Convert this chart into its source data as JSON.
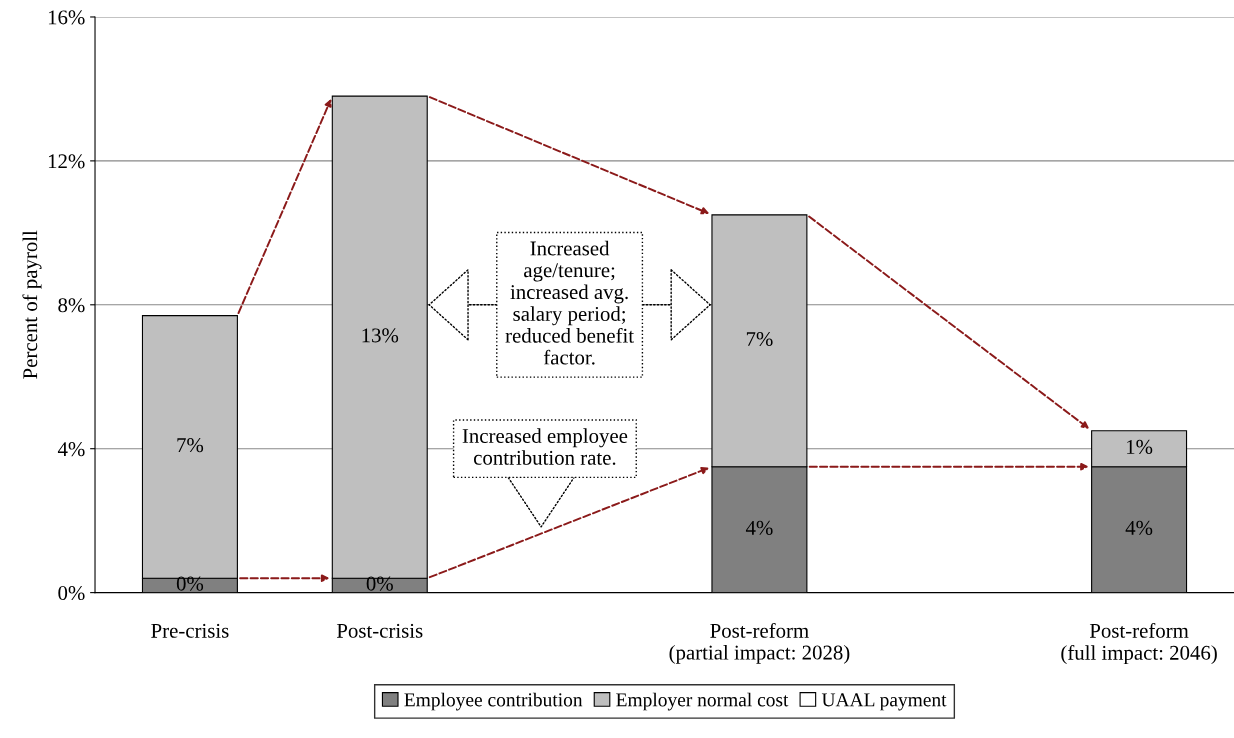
{
  "chart_data": {
    "type": "bar",
    "stacked": true,
    "ylabel": "Percent of payroll",
    "categories": [
      "Pre-crisis",
      "Post-crisis",
      null,
      "Post-reform\n(partial impact: 2028)",
      null,
      "Post-reform\n(full impact: 2046)"
    ],
    "series": [
      {
        "name": "Employee contribution",
        "color": "#808080",
        "values": [
          0.4,
          0.4,
          null,
          3.5,
          null,
          3.5
        ],
        "value_labels": [
          "0%",
          "0%",
          null,
          "4%",
          null,
          "4%"
        ]
      },
      {
        "name": "Employer normal cost",
        "color": "#bfbfbf",
        "values": [
          7.3,
          13.4,
          null,
          7.0,
          null,
          1.0
        ],
        "value_labels": [
          "7%",
          "13%",
          null,
          "7%",
          null,
          "1%"
        ]
      },
      {
        "name": "UAAL payment",
        "color": "#ffffff",
        "values": [
          null,
          null,
          null,
          null,
          null,
          null
        ]
      }
    ],
    "ylim": [
      0,
      16
    ],
    "yticks": [
      {
        "value": 0,
        "label": "0%"
      },
      {
        "value": 4,
        "label": "4%"
      },
      {
        "value": 8,
        "label": "8%"
      },
      {
        "value": 12,
        "label": "12%"
      },
      {
        "value": 16,
        "label": "16%"
      }
    ],
    "grid": "y",
    "legend": "bottom",
    "annotations": [
      "Increased\nage/tenure;\nincreased avg.\nsalary period;\nreduced benefit\nfactor.",
      "Increased employee\ncontribution rate."
    ]
  }
}
